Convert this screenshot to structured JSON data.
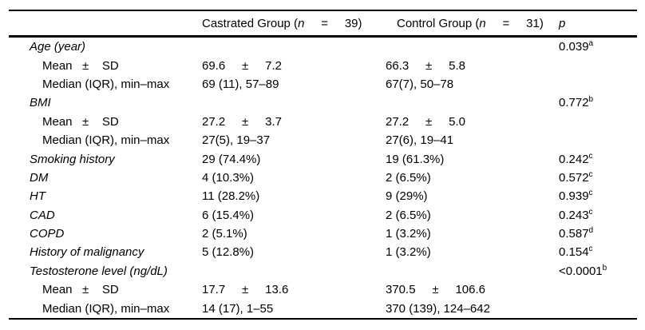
{
  "colors": {
    "background": "#ffffff",
    "text": "#000000",
    "rule": "#000000"
  },
  "table": {
    "header": {
      "label_column": "",
      "castrated": {
        "prefix": "Castrated Group (",
        "n": "n",
        "suffix": "     =     39)"
      },
      "control": {
        "prefix": "Control Group (",
        "n": "n",
        "suffix": "     =     31)"
      },
      "p": "p"
    },
    "rows": [
      {
        "type": "cat",
        "label": "Age (year)",
        "castrated": "",
        "control": "",
        "p": "0.039",
        "p_sup": "a"
      },
      {
        "type": "sub",
        "label": "Mean   ±    SD",
        "castrated": "69.6     ±     7.2",
        "control": "66.3     ±     5.8",
        "p": "",
        "p_sup": ""
      },
      {
        "type": "sub",
        "label": "Median (IQR), min–max",
        "castrated": "69 (11), 57–89",
        "control": "67(7), 50–78",
        "p": "",
        "p_sup": ""
      },
      {
        "type": "cat",
        "label": "BMI",
        "castrated": "",
        "control": "",
        "p": "0.772",
        "p_sup": "b"
      },
      {
        "type": "sub",
        "label": "Mean   ±    SD",
        "castrated": "27.2     ±     3.7",
        "control": "27.2     ±     5.0",
        "p": "",
        "p_sup": ""
      },
      {
        "type": "sub",
        "label": "Median (IQR), min–max",
        "castrated": "27(5), 19–37",
        "control": "27(6), 19–41",
        "p": "",
        "p_sup": ""
      },
      {
        "type": "cat",
        "label": "Smoking history",
        "castrated": "29 (74.4%)",
        "control": "19 (61.3%)",
        "p": "0.242",
        "p_sup": "c"
      },
      {
        "type": "cat",
        "label": "DM",
        "castrated": "4 (10.3%)",
        "control": "2 (6.5%)",
        "p": "0.572",
        "p_sup": "c"
      },
      {
        "type": "cat",
        "label": "HT",
        "castrated": "11 (28.2%)",
        "control": "9 (29%)",
        "p": "0.939",
        "p_sup": "c"
      },
      {
        "type": "cat",
        "label": "CAD",
        "castrated": "6 (15.4%)",
        "control": "2 (6.5%)",
        "p": "0.243",
        "p_sup": "c"
      },
      {
        "type": "cat",
        "label": "COPD",
        "castrated": "2 (5.1%)",
        "control": "1 (3.2%)",
        "p": "0.587",
        "p_sup": "d"
      },
      {
        "type": "cat",
        "label": "History of malignancy",
        "castrated": "5 (12.8%)",
        "control": "1 (3.2%)",
        "p": "0.154",
        "p_sup": "c"
      },
      {
        "type": "cat",
        "label": "Testosterone level (ng/dL)",
        "castrated": "",
        "control": "",
        "p": "<0.0001",
        "p_sup": "b"
      },
      {
        "type": "sub",
        "label": "Mean   ±    SD",
        "castrated": "17.7     ±     13.6",
        "control": "370.5     ±     106.6",
        "p": "",
        "p_sup": ""
      },
      {
        "type": "sub",
        "label": "Median (IQR), min–max",
        "castrated": "14 (17), 1–55",
        "control": "370 (139), 124–642",
        "p": "",
        "p_sup": ""
      }
    ]
  }
}
